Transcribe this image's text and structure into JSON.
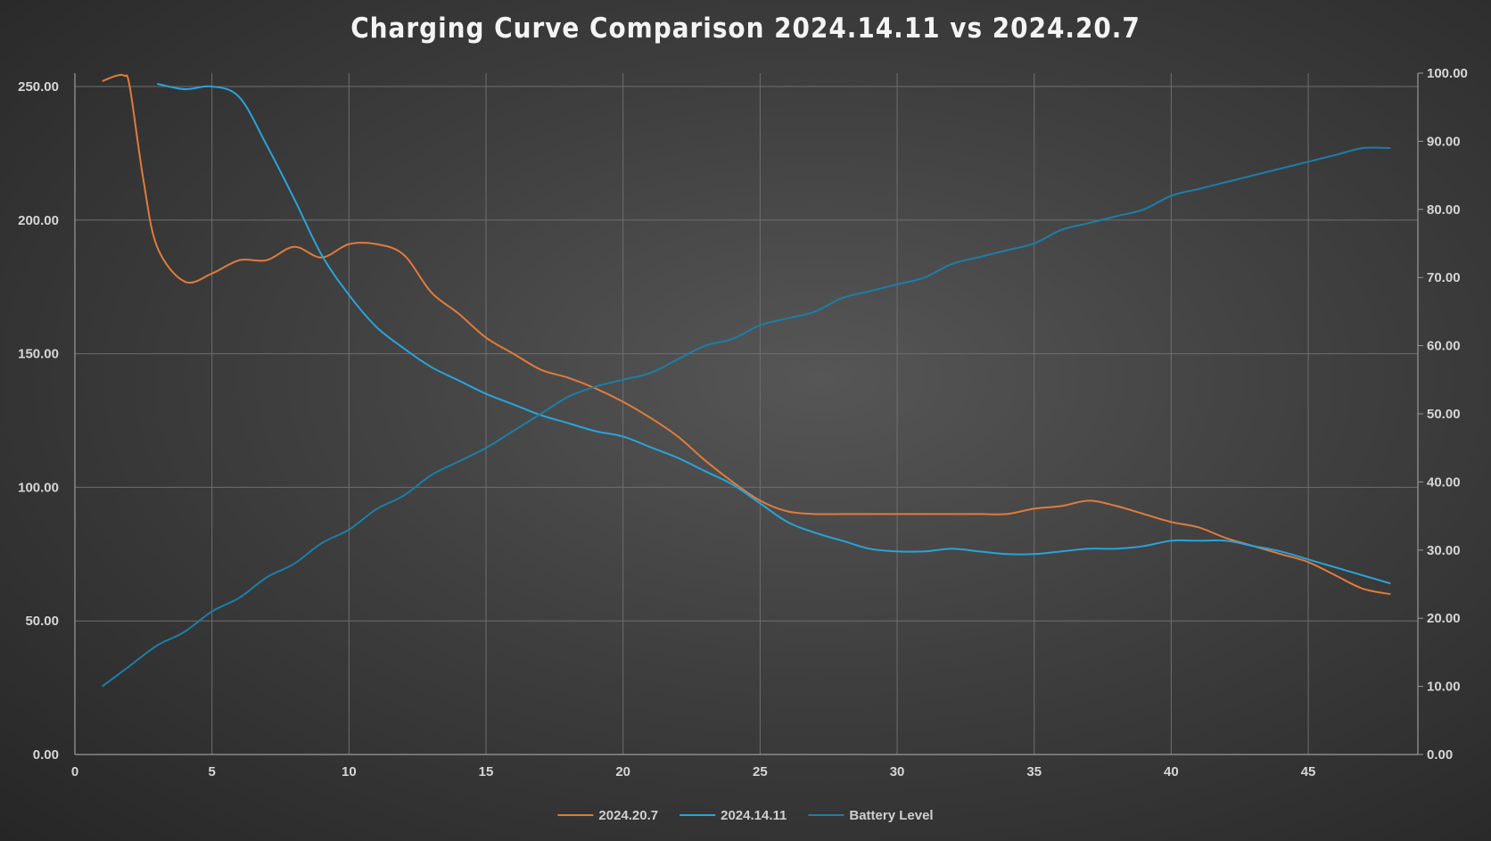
{
  "chart_data": {
    "type": "line",
    "title": "Charging Curve Comparison 2024.14.11 vs 2024.20.7",
    "xlim": [
      0,
      49
    ],
    "x_ticks": [
      "0",
      "5",
      "10",
      "15",
      "20",
      "25",
      "30",
      "35",
      "40",
      "45"
    ],
    "y_left": {
      "lim": [
        0,
        255
      ],
      "ticks": [
        "0.00",
        "50.00",
        "100.00",
        "150.00",
        "200.00",
        "250.00"
      ]
    },
    "y_right": {
      "lim": [
        0,
        100
      ],
      "ticks": [
        "0.00",
        "10.00",
        "20.00",
        "30.00",
        "40.00",
        "50.00",
        "60.00",
        "70.00",
        "80.00",
        "90.00",
        "100.00"
      ]
    },
    "grid": true,
    "legend_position": "bottom",
    "series": [
      {
        "name": "2024.20.7",
        "axis": "left",
        "color": "#E07B3C",
        "x": [
          1,
          1.5,
          1.8,
          2,
          2.5,
          3,
          4,
          5,
          6,
          7,
          8,
          9,
          10,
          11,
          12,
          13,
          14,
          15,
          16,
          17,
          18,
          19,
          20,
          21,
          22,
          23,
          24,
          25,
          26,
          27,
          28,
          29,
          30,
          31,
          32,
          33,
          34,
          35,
          36,
          37,
          38,
          39,
          40,
          41,
          42,
          43,
          44,
          45,
          46,
          47,
          48
        ],
        "y": [
          252,
          254,
          254,
          250,
          215,
          190,
          177,
          180,
          185,
          185,
          190,
          186,
          191,
          191,
          187,
          173,
          165,
          156,
          150,
          144,
          141,
          137,
          132,
          126,
          119,
          110,
          102,
          95,
          91,
          90,
          90,
          90,
          90,
          90,
          90,
          90,
          90,
          92,
          93,
          95,
          93,
          90,
          87,
          85,
          81,
          78,
          75,
          72,
          67,
          62,
          60
        ]
      },
      {
        "name": "2024.14.11",
        "axis": "left",
        "color": "#29A3D8",
        "x": [
          3,
          4,
          5,
          6,
          7,
          8,
          9,
          10,
          11,
          12,
          13,
          14,
          15,
          16,
          17,
          18,
          19,
          20,
          21,
          22,
          23,
          24,
          25,
          26,
          27,
          28,
          29,
          30,
          31,
          32,
          33,
          34,
          35,
          36,
          37,
          38,
          39,
          40,
          41,
          42,
          43,
          44,
          45,
          46,
          47,
          48
        ],
        "y": [
          251,
          249,
          250,
          246,
          228,
          208,
          187,
          172,
          160,
          152,
          145,
          140,
          135,
          131,
          127,
          124,
          121,
          119,
          115,
          111,
          106,
          101,
          94,
          87,
          83,
          80,
          77,
          76,
          76,
          77,
          76,
          75,
          75,
          76,
          77,
          77,
          78,
          80,
          80,
          80,
          78,
          76,
          73,
          70,
          67,
          64
        ]
      },
      {
        "name": "Battery Level",
        "axis": "right",
        "color": "#1B7FA8",
        "x": [
          1,
          2,
          3,
          4,
          5,
          6,
          7,
          8,
          9,
          10,
          11,
          12,
          13,
          14,
          15,
          16,
          17,
          18,
          19,
          20,
          21,
          22,
          23,
          24,
          25,
          26,
          27,
          28,
          29,
          30,
          31,
          32,
          33,
          34,
          35,
          36,
          37,
          38,
          39,
          40,
          41,
          42,
          43,
          44,
          45,
          46,
          47,
          48
        ],
        "y": [
          10,
          13,
          16,
          18,
          21,
          23,
          26,
          28,
          31,
          33,
          36,
          38,
          41,
          43,
          45,
          47.5,
          50,
          52.5,
          54,
          55,
          56,
          58,
          60,
          61,
          63,
          64,
          65,
          67,
          68,
          69,
          70,
          72,
          73,
          74,
          75,
          77,
          78,
          79,
          80,
          82,
          83,
          84,
          85,
          86,
          87,
          88,
          89,
          89
        ]
      }
    ]
  }
}
